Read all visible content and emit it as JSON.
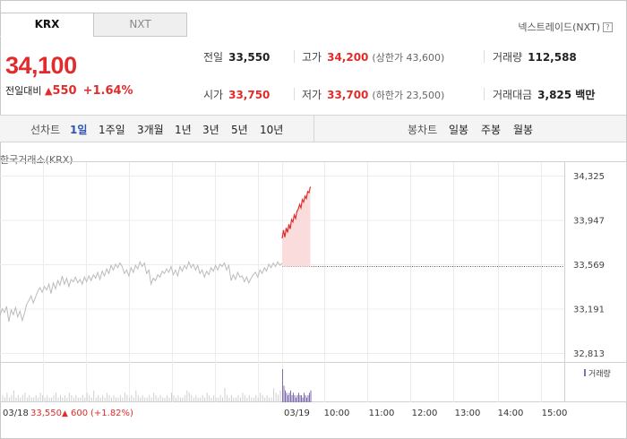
{
  "tabs": [
    {
      "label": "KRX",
      "active": true
    },
    {
      "label": "NXT",
      "active": false
    }
  ],
  "nxt_link": "넥스트레이드(NXT)",
  "help_glyph": "?",
  "price": {
    "current": "34,100",
    "change_label": "전일대비",
    "change_arrow": "▲",
    "change_value": "550",
    "change_percent": "+1.64%"
  },
  "stats": {
    "prev_close": {
      "label": "전일",
      "value": "33,550"
    },
    "high": {
      "label": "고가",
      "value": "34,200",
      "sub": "(상한가 43,600)"
    },
    "volume": {
      "label": "거래량",
      "value": "112,588"
    },
    "open": {
      "label": "시가",
      "value": "33,750"
    },
    "low": {
      "label": "저가",
      "value": "33,700",
      "sub": "(하한가 23,500)"
    },
    "amount": {
      "label": "거래대금",
      "value": "3,825 백만"
    }
  },
  "toolbar": {
    "line_label": "선차트",
    "periods": [
      "1일",
      "1주일",
      "3개월",
      "1년",
      "3년",
      "5년",
      "10년"
    ],
    "active_period": "1일",
    "candle_label": "봉차트",
    "candles": [
      "일봉",
      "주봉",
      "월봉"
    ]
  },
  "source_label": "한국거래소(KRX)",
  "colors": {
    "up": "#e12c2c",
    "active": "#2f54b5",
    "prev_line": "#bbbbbb",
    "volume": "#7f6fb0"
  },
  "chart_data": {
    "type": "line",
    "title": "",
    "y_ticks": [
      "34,325",
      "33,947",
      "33,569",
      "33,191",
      "32,813"
    ],
    "ylim": [
      32813,
      34325
    ],
    "reference_price": 33550,
    "volume_legend": "거래량",
    "x_labels": [
      "10:00",
      "11:00",
      "12:00",
      "13:00",
      "14:00",
      "15:00"
    ],
    "prev_day": {
      "date": "03/18",
      "close": "33,550",
      "arrow": "▲",
      "change": "600",
      "percent": "(+1.82%)"
    },
    "today_date": "03/19",
    "series": [
      {
        "values": [
          33130,
          33190,
          33160,
          33210,
          33080,
          33180,
          33140,
          33200,
          33120,
          33170,
          33090,
          33150,
          33230,
          33260,
          33300,
          33240,
          33290,
          33340,
          33370,
          33330,
          33380,
          33350,
          33400,
          33320,
          33410,
          33360,
          33430,
          33390,
          33470,
          33400,
          33450,
          33380,
          33440,
          33420,
          33460,
          33410,
          33440,
          33400,
          33460,
          33420,
          33470,
          33430,
          33480,
          33450,
          33500,
          33440,
          33510,
          33470,
          33530,
          33490,
          33560,
          33520,
          33570,
          33540,
          33580,
          33550,
          33490,
          33520,
          33470,
          33540,
          33500,
          33560,
          33530,
          33590,
          33550,
          33580,
          33490,
          33520,
          33400,
          33450,
          33430,
          33480,
          33460,
          33510,
          33490,
          33530,
          33500,
          33550,
          33480,
          33520,
          33470,
          33550,
          33510,
          33560,
          33530,
          33590,
          33540,
          33570,
          33520,
          33560,
          33490,
          33520,
          33460,
          33510,
          33480,
          33540,
          33510,
          33560,
          33520,
          33570,
          33550,
          33580,
          33520,
          33560,
          33430,
          33480,
          33440,
          33500,
          33460,
          33470,
          33420,
          33460,
          33410,
          33450,
          33480,
          33500,
          33460,
          33520,
          33490,
          33540,
          33510,
          33570,
          33540,
          33580,
          33550,
          33590,
          33560,
          33580
        ],
        "color": "#bbbbbb"
      },
      {
        "values": [
          33790,
          33860,
          33800,
          33880,
          33840,
          33910,
          33870,
          33950,
          33930,
          33990,
          33960,
          34020,
          34040,
          34080,
          34050,
          34120,
          34100,
          34150,
          34130,
          34190,
          34180,
          34230
        ],
        "color": "#e12c2c"
      }
    ],
    "volume_prev": [
      2,
      3,
      2,
      4,
      2,
      3,
      5,
      2,
      3,
      2,
      3,
      4,
      2,
      3,
      2,
      2,
      3,
      2,
      4,
      3,
      2,
      3,
      2,
      2,
      3,
      4,
      2,
      3,
      2,
      3,
      2,
      4,
      3,
      2,
      3,
      2,
      2,
      3,
      2,
      4,
      3,
      2,
      5,
      2,
      3,
      2,
      3,
      2,
      4,
      3,
      2,
      3,
      2,
      2,
      3,
      2,
      4,
      3,
      2,
      3,
      2,
      5,
      3,
      2,
      3,
      2,
      2,
      3,
      2,
      4,
      3,
      2,
      3,
      2,
      2,
      3,
      2,
      4,
      3,
      2,
      3,
      2,
      2,
      3,
      5,
      4,
      3,
      2,
      3,
      2,
      2,
      3,
      2,
      4,
      3,
      2,
      3,
      2,
      2,
      3,
      2,
      6,
      3,
      2,
      3,
      2,
      2,
      3,
      2,
      4,
      3,
      2,
      3,
      2,
      2,
      3,
      2,
      4,
      3,
      2,
      3,
      2,
      2,
      6,
      4,
      3,
      5,
      8
    ],
    "volume_today": [
      14,
      7,
      5,
      4,
      3,
      4,
      5,
      3,
      4,
      3,
      2,
      3,
      4,
      3,
      3,
      2,
      4,
      3,
      2,
      3,
      4,
      5
    ]
  }
}
